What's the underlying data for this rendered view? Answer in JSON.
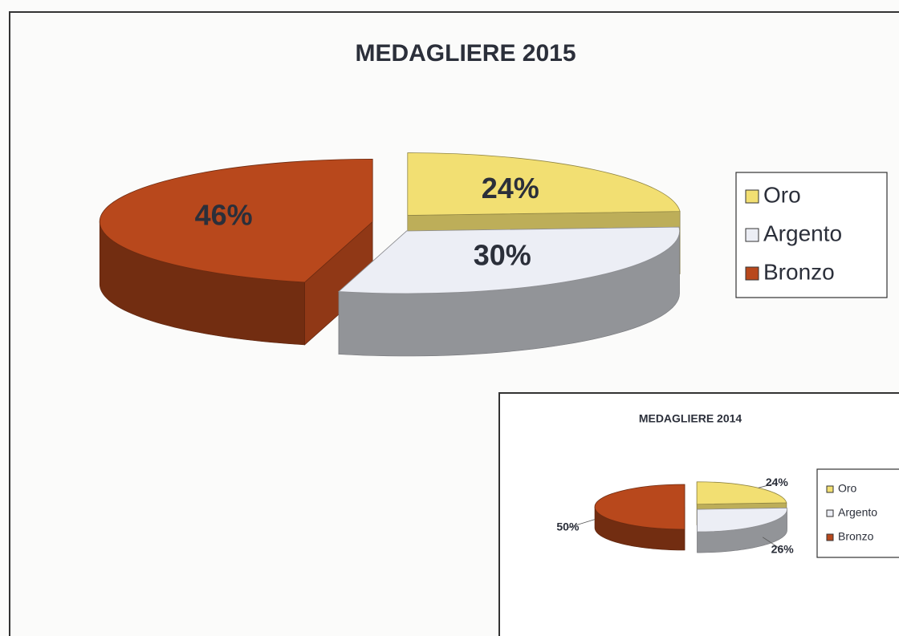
{
  "chart_data": [
    {
      "type": "pie",
      "title": "MEDAGLIERE 2015",
      "categories": [
        "Oro",
        "Argento",
        "Bronzo"
      ],
      "values": [
        24,
        30,
        46
      ],
      "value_labels": [
        "24%",
        "30%",
        "46%"
      ],
      "colors": [
        "#f2df72",
        "#eceef5",
        "#b8481c"
      ],
      "legend": "right"
    },
    {
      "type": "pie",
      "title": "MEDAGLIERE 2014",
      "categories": [
        "Oro",
        "Argento",
        "Bronzo"
      ],
      "values": [
        24,
        26,
        50
      ],
      "value_labels": [
        "24%",
        "26%",
        "50%"
      ],
      "colors": [
        "#f2df72",
        "#eceef5",
        "#b8481c"
      ],
      "legend": "right"
    }
  ]
}
